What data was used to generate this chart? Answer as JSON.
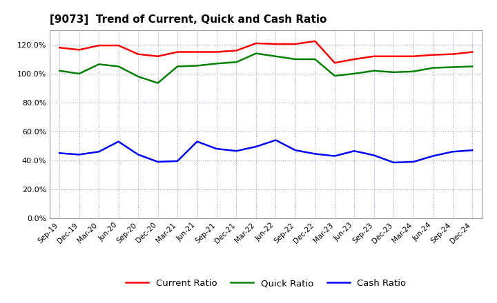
{
  "title": "[9073]  Trend of Current, Quick and Cash Ratio",
  "labels": [
    "Sep-19",
    "Dec-19",
    "Mar-20",
    "Jun-20",
    "Sep-20",
    "Dec-20",
    "Mar-21",
    "Jun-21",
    "Sep-21",
    "Dec-21",
    "Mar-22",
    "Jun-22",
    "Sep-22",
    "Dec-22",
    "Mar-23",
    "Jun-23",
    "Sep-23",
    "Dec-23",
    "Mar-24",
    "Jun-24",
    "Sep-24",
    "Dec-24"
  ],
  "current_ratio": [
    118.0,
    116.5,
    119.5,
    119.5,
    113.5,
    112.0,
    115.0,
    115.0,
    115.0,
    116.0,
    121.0,
    120.5,
    120.5,
    122.5,
    107.5,
    110.0,
    112.0,
    112.0,
    112.0,
    113.0,
    113.5,
    115.0
  ],
  "quick_ratio": [
    102.0,
    100.0,
    106.5,
    105.0,
    98.0,
    93.5,
    105.0,
    105.5,
    107.0,
    108.0,
    114.0,
    112.0,
    110.0,
    110.0,
    98.5,
    100.0,
    102.0,
    101.0,
    101.5,
    104.0,
    104.5,
    105.0
  ],
  "cash_ratio": [
    45.0,
    44.0,
    46.0,
    53.0,
    44.0,
    39.0,
    39.5,
    53.0,
    48.0,
    46.5,
    49.5,
    54.0,
    47.0,
    44.5,
    43.0,
    46.5,
    43.5,
    38.5,
    39.0,
    43.0,
    46.0,
    47.0
  ],
  "current_color": "#FF0000",
  "quick_color": "#008000",
  "cash_color": "#0000FF",
  "ylim": [
    0,
    130
  ],
  "yticks": [
    0,
    20,
    40,
    60,
    80,
    100,
    120
  ],
  "background_color": "#FFFFFF"
}
